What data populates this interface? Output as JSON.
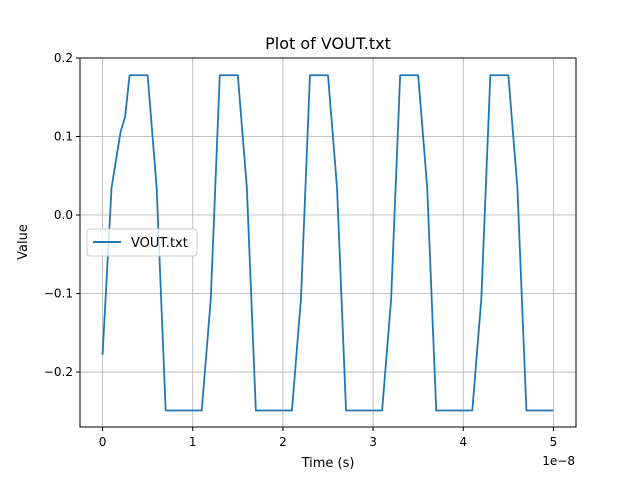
{
  "chart_data": {
    "type": "line",
    "title": "Plot of VOUT.txt",
    "xlabel": "Time (s)",
    "ylabel": "Value",
    "x_offset_label": "1e−8",
    "xlim": [
      -0.25,
      5.25
    ],
    "ylim": [
      -0.27,
      0.2
    ],
    "x_scale_factor": 1e-08,
    "x_ticks": [
      0,
      1,
      2,
      3,
      4,
      5
    ],
    "x_tick_labels": [
      "0",
      "1",
      "2",
      "3",
      "4",
      "5"
    ],
    "y_ticks": [
      -0.2,
      -0.1,
      0.0,
      0.1,
      0.2
    ],
    "y_tick_labels": [
      "−0.2",
      "−0.1",
      "0.0",
      "0.1",
      "0.2"
    ],
    "grid": true,
    "legend_position": "center-left",
    "series": [
      {
        "name": "VOUT.txt",
        "color": "#1f77b4",
        "x": [
          0,
          0.1,
          0.2,
          0.25,
          0.3,
          0.5,
          0.6,
          0.7,
          1.1,
          1.2,
          1.3,
          1.5,
          1.6,
          1.7,
          2.1,
          2.2,
          2.3,
          2.5,
          2.6,
          2.7,
          3.1,
          3.2,
          3.3,
          3.5,
          3.6,
          3.7,
          4.1,
          4.2,
          4.3,
          4.5,
          4.6,
          4.7,
          5.0
        ],
        "y": [
          -0.178,
          0.035,
          0.106,
          0.125,
          0.178,
          0.178,
          0.035,
          -0.249,
          -0.249,
          -0.107,
          0.178,
          0.178,
          0.035,
          -0.249,
          -0.249,
          -0.107,
          0.178,
          0.178,
          0.035,
          -0.249,
          -0.249,
          -0.107,
          0.178,
          0.178,
          0.035,
          -0.249,
          -0.249,
          -0.107,
          0.178,
          0.178,
          0.035,
          -0.249,
          -0.249
        ]
      }
    ]
  }
}
